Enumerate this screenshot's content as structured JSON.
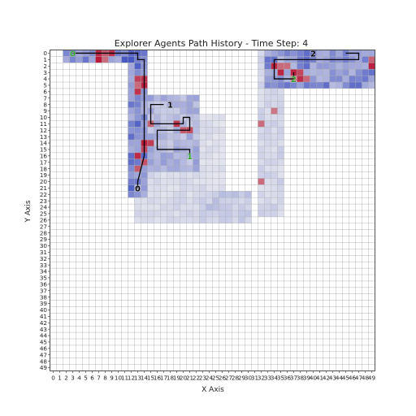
{
  "chart_data": {
    "type": "heatmap",
    "title": "Explorer Agents Path History - Time Step: 4",
    "xlabel": "X Axis",
    "ylabel": "Y Axis",
    "grid": true,
    "x_ticks": [
      "0",
      "1",
      "2",
      "3",
      "4",
      "5",
      "6",
      "7",
      "8",
      "9",
      "10",
      "11",
      "12",
      "13",
      "14",
      "15",
      "16",
      "17",
      "18",
      "19",
      "20",
      "21",
      "22",
      "23",
      "24",
      "25",
      "26",
      "27",
      "28",
      "29",
      "30",
      "31",
      "32",
      "33",
      "34",
      "35",
      "36",
      "37",
      "38",
      "39",
      "40",
      "41",
      "42",
      "43",
      "44",
      "45",
      "46",
      "47",
      "48",
      "49"
    ],
    "y_ticks": [
      "0",
      "1",
      "2",
      "3",
      "4",
      "5",
      "6",
      "7",
      "8",
      "9",
      "10",
      "11",
      "12",
      "13",
      "14",
      "15",
      "16",
      "17",
      "18",
      "19",
      "20",
      "21",
      "22",
      "23",
      "24",
      "25",
      "26",
      "27",
      "28",
      "29",
      "30",
      "31",
      "32",
      "33",
      "34",
      "35",
      "36",
      "37",
      "38",
      "39",
      "40",
      "41",
      "42",
      "43",
      "44",
      "45",
      "46",
      "47",
      "48",
      "49"
    ],
    "x_range": [
      0,
      49
    ],
    "y_range": [
      0,
      49
    ],
    "y_inverted": true,
    "visited_regions": [
      {
        "x": [
          2,
          14
        ],
        "y": [
          0,
          1
        ],
        "intensity": 0.9
      },
      {
        "x": [
          12,
          14
        ],
        "y": [
          0,
          22
        ],
        "intensity": 0.85
      },
      {
        "x": [
          15,
          22
        ],
        "y": [
          7,
          18
        ],
        "intensity": 0.6
      },
      {
        "x": [
          13,
          23
        ],
        "y": [
          18,
          26
        ],
        "intensity": 0.3
      },
      {
        "x": [
          23,
          30
        ],
        "y": [
          22,
          26
        ],
        "intensity": 0.45
      },
      {
        "x": [
          23,
          26
        ],
        "y": [
          10,
          22
        ],
        "intensity": 0.25
      },
      {
        "x": [
          32,
          35
        ],
        "y": [
          0,
          25
        ],
        "intensity": 0.35
      },
      {
        "x": [
          33,
          49
        ],
        "y": [
          0,
          5
        ],
        "intensity": 0.8
      }
    ],
    "hot_cells": [
      [
        7,
        0
      ],
      [
        8,
        0
      ],
      [
        9,
        0
      ],
      [
        7,
        1
      ],
      [
        8,
        1
      ],
      [
        13,
        4
      ],
      [
        14,
        4
      ],
      [
        13,
        5
      ],
      [
        14,
        5
      ],
      [
        13,
        6
      ],
      [
        14,
        14
      ],
      [
        14,
        15
      ],
      [
        15,
        14
      ],
      [
        13,
        16
      ],
      [
        14,
        17
      ],
      [
        13,
        18
      ],
      [
        20,
        12
      ],
      [
        21,
        12
      ],
      [
        19,
        11
      ],
      [
        15,
        11
      ],
      [
        37,
        4
      ],
      [
        38,
        4
      ],
      [
        39,
        4
      ],
      [
        38,
        3
      ],
      [
        37,
        3
      ],
      [
        34,
        2
      ],
      [
        35,
        2
      ],
      [
        35,
        3
      ],
      [
        36,
        2
      ],
      [
        49,
        1
      ],
      [
        49,
        2
      ],
      [
        31,
        20
      ],
      [
        32,
        20
      ],
      [
        31,
        21
      ],
      [
        32,
        11
      ],
      [
        34,
        9
      ]
    ],
    "paths": [
      {
        "label": "0",
        "points": [
          [
            3,
            0
          ],
          [
            13,
            0
          ],
          [
            13,
            1
          ],
          [
            14,
            1
          ],
          [
            14,
            6
          ],
          [
            14,
            12
          ],
          [
            14,
            16
          ],
          [
            13,
            20
          ],
          [
            13,
            21
          ]
        ]
      },
      {
        "label": "1",
        "points": [
          [
            17,
            8
          ],
          [
            15,
            8
          ],
          [
            15,
            11
          ],
          [
            20,
            11
          ],
          [
            20,
            10
          ],
          [
            21,
            10
          ],
          [
            21,
            12
          ],
          [
            16,
            12
          ],
          [
            16,
            15
          ],
          [
            21,
            15
          ],
          [
            21,
            16
          ]
        ]
      },
      {
        "label": "2",
        "points": [
          [
            45,
            0
          ],
          [
            47,
            0
          ],
          [
            47,
            1
          ],
          [
            34,
            1
          ],
          [
            34,
            4
          ],
          [
            37,
            4
          ],
          [
            37,
            3
          ]
        ]
      }
    ],
    "agent_markers": [
      {
        "label": "0",
        "x": 3,
        "y": 0,
        "color": "green"
      },
      {
        "label": "0",
        "x": 13,
        "y": 21,
        "color": "black"
      },
      {
        "label": "1",
        "x": 18,
        "y": 8,
        "color": "black"
      },
      {
        "label": "1",
        "x": 21,
        "y": 16,
        "color": "green"
      },
      {
        "label": "2",
        "x": 37,
        "y": 4,
        "color": "green"
      },
      {
        "label": "2",
        "x": 40,
        "y": 0,
        "color": "black"
      }
    ],
    "colors": {
      "cold": "#3b4cc0",
      "neutral": "#dddcdc",
      "hot": "#b40426",
      "grid": "#b0b0b0",
      "path": "#000000",
      "label_start": "#2ca02c",
      "label_end": "#000000"
    }
  }
}
